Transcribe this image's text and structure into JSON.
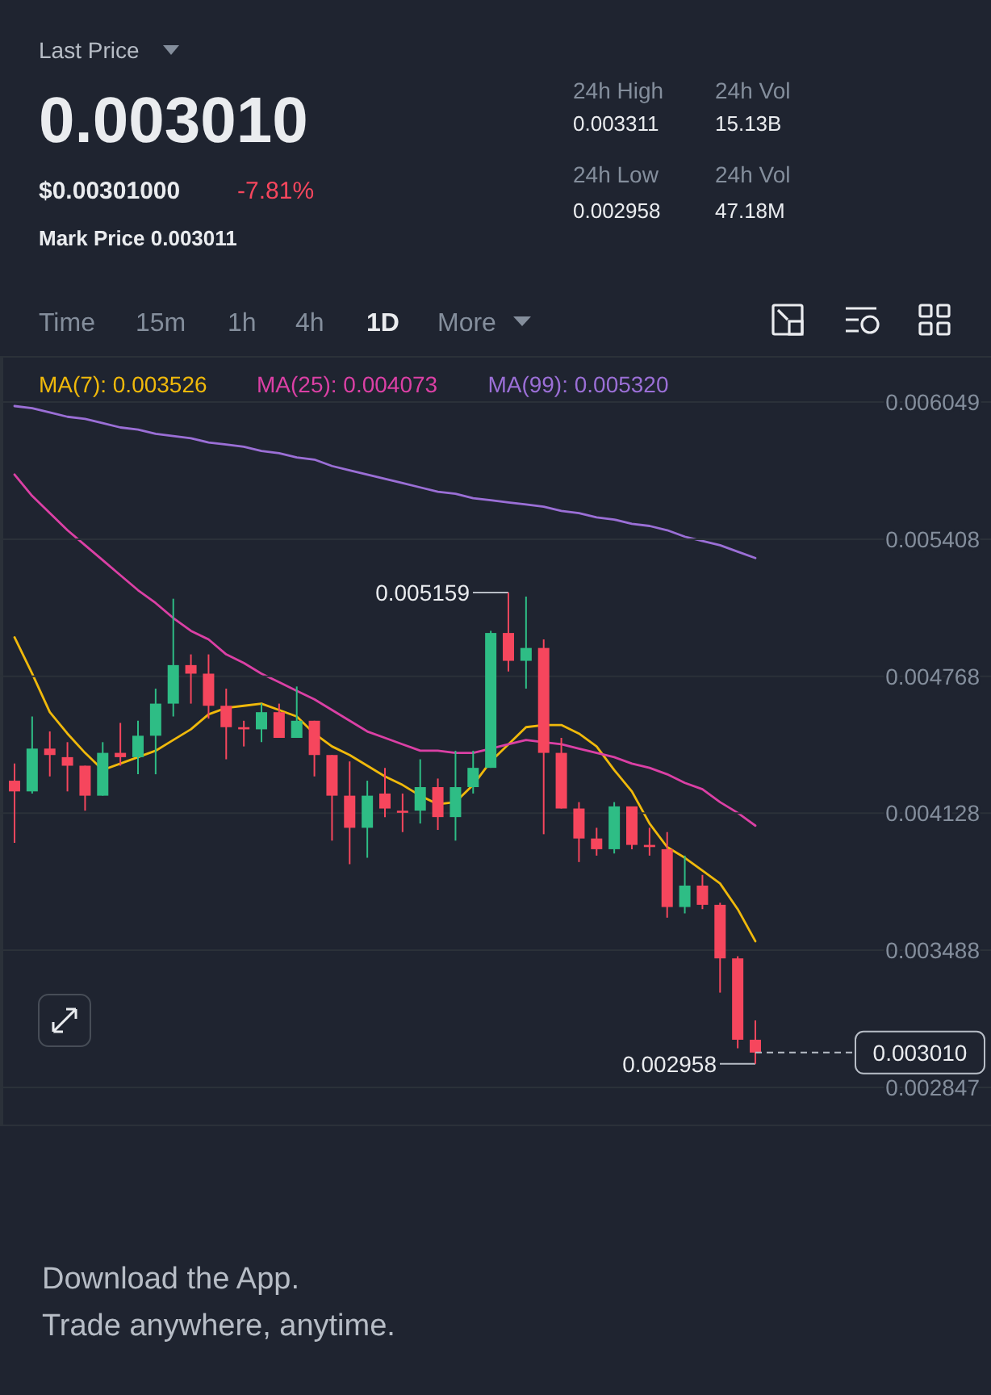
{
  "chart_data": [
    {
      "type": "candlestick",
      "title": "Last Price",
      "annotations": [
        "0.003010",
        "$0.00301000",
        "-7.81%",
        "Mark Price 0.003011",
        "24h High",
        "0.003311",
        "24h Vol",
        "15.13B",
        "24h Low",
        "0.002958",
        "24h Vol",
        "47.18M",
        "Time",
        "15m",
        "1h",
        "4h",
        "1D",
        "More",
        "Download the App.",
        "Trade anywhere, anytime.",
        "0.005159",
        "0.002958"
      ],
      "categories": [
        null,
        null,
        null,
        null,
        null,
        null,
        null,
        null,
        null,
        null,
        null,
        null,
        null,
        null,
        null,
        null,
        null,
        null,
        null,
        null,
        null,
        null,
        null,
        null,
        null,
        null,
        null,
        null,
        null,
        null,
        null,
        null,
        null,
        null,
        null,
        null,
        null,
        null,
        null,
        null,
        null,
        null,
        null
      ],
      "ohlc": [
        [
          0.00428,
          0.00436,
          0.00399,
          0.00423
        ],
        [
          0.00423,
          0.00458,
          0.00422,
          0.00443
        ],
        [
          0.00443,
          0.00451,
          0.0043,
          0.0044
        ],
        [
          0.00439,
          0.00446,
          0.00423,
          0.00435
        ],
        [
          0.00435,
          0.00435,
          0.00414,
          0.00421
        ],
        [
          0.00421,
          0.00446,
          0.00421,
          0.00441
        ],
        [
          0.00441,
          0.00455,
          0.00435,
          0.00439
        ],
        [
          0.00439,
          0.00456,
          0.00431,
          0.00449
        ],
        [
          0.00449,
          0.00471,
          0.00431,
          0.00464
        ],
        [
          0.00464,
          0.00513,
          0.00458,
          0.00482
        ],
        [
          0.00482,
          0.00487,
          0.00464,
          0.00478
        ],
        [
          0.00478,
          0.00487,
          0.00457,
          0.00463
        ],
        [
          0.00463,
          0.00471,
          0.00438,
          0.00453
        ],
        [
          0.00453,
          0.00456,
          0.00444,
          0.00452
        ],
        [
          0.00452,
          0.00464,
          0.00446,
          0.0046
        ],
        [
          0.0046,
          0.00464,
          0.00448,
          0.00448
        ],
        [
          0.00448,
          0.00472,
          0.00448,
          0.00456
        ],
        [
          0.00456,
          0.00456,
          0.0043,
          0.0044
        ],
        [
          0.0044,
          0.0044,
          0.004,
          0.00421
        ],
        [
          0.00421,
          0.00437,
          0.00389,
          0.00406
        ],
        [
          0.00406,
          0.00428,
          0.00392,
          0.00421
        ],
        [
          0.00422,
          0.00434,
          0.00411,
          0.00415
        ],
        [
          0.00414,
          0.00422,
          0.00404,
          0.00413
        ],
        [
          0.00414,
          0.00438,
          0.00408,
          0.00425
        ],
        [
          0.00425,
          0.00429,
          0.00405,
          0.00411
        ],
        [
          0.00411,
          0.00442,
          0.004,
          0.00425
        ],
        [
          0.00425,
          0.00442,
          0.00422,
          0.00434
        ],
        [
          0.00434,
          0.00498,
          0.00434,
          0.00497
        ],
        [
          0.00497,
          0.005159,
          0.00479,
          0.00484
        ],
        [
          0.00484,
          0.00514,
          0.00471,
          0.0049
        ],
        [
          0.0049,
          0.00494,
          0.00403,
          0.00441
        ],
        [
          0.00441,
          0.00448,
          0.00415,
          0.00415
        ],
        [
          0.00415,
          0.00418,
          0.0039,
          0.00401
        ],
        [
          0.00401,
          0.00406,
          0.00393,
          0.00396
        ],
        [
          0.00396,
          0.00418,
          0.00394,
          0.00416
        ],
        [
          0.00416,
          0.00416,
          0.00396,
          0.00398
        ],
        [
          0.00398,
          0.00406,
          0.00393,
          0.00397
        ],
        [
          0.00396,
          0.00404,
          0.00364,
          0.00369
        ],
        [
          0.00369,
          0.00393,
          0.00366,
          0.00379
        ],
        [
          0.00379,
          0.00384,
          0.00368,
          0.0037
        ],
        [
          0.0037,
          0.00371,
          0.00329,
          0.00345
        ],
        [
          0.00345,
          0.00346,
          0.00303,
          0.00307
        ],
        [
          0.00307,
          0.00316,
          0.002958,
          0.00301
        ]
      ],
      "colors": [
        "#f6465d",
        "#2ebd85",
        "#f6465d",
        "#f6465d",
        "#f6465d",
        "#2ebd85",
        "#f6465d",
        "#2ebd85",
        "#2ebd85",
        "#2ebd85",
        "#f6465d",
        "#f6465d",
        "#f6465d",
        "#f6465d",
        "#2ebd85",
        "#f6465d",
        "#2ebd85",
        "#f6465d",
        "#f6465d",
        "#f6465d",
        "#2ebd85",
        "#f6465d",
        "#f6465d",
        "#2ebd85",
        "#f6465d",
        "#2ebd85",
        "#2ebd85",
        "#2ebd85",
        "#f6465d",
        "#2ebd85",
        "#f6465d",
        "#f6465d",
        "#f6465d",
        "#f6465d",
        "#2ebd85",
        "#f6465d",
        "#f6465d",
        "#f6465d",
        "#2ebd85",
        "#f6465d",
        "#f6465d",
        "#f6465d",
        "#f6465d"
      ],
      "ylim": [
        0.00267,
        0.00626
      ],
      "yticks": [
        0.006049,
        0.005408,
        0.004768,
        0.004128,
        0.003488,
        0.002847
      ],
      "grid": "y",
      "ref_lines": [
        {
          "axis": "y",
          "value": 0.00301,
          "label": "0.003010",
          "color": "#b7bdc6",
          "line_style": "dashed"
        }
      ]
    },
    {
      "type": "line",
      "categories": [
        null,
        null,
        null,
        null,
        null,
        null,
        null,
        null,
        null,
        null,
        null,
        null,
        null,
        null,
        null,
        null,
        null,
        null,
        null,
        null,
        null,
        null,
        null,
        null,
        null,
        null,
        null,
        null,
        null,
        null,
        null,
        null,
        null,
        null,
        null,
        null,
        null,
        null,
        null,
        null,
        null,
        null,
        null
      ],
      "series": [
        {
          "name": "MA(7): 0.003526",
          "color": "#f0b90b",
          "values": [
            0.00495,
            0.00478,
            0.0046,
            0.0045,
            0.00441,
            0.00433,
            0.00436,
            0.00439,
            0.00442,
            0.00447,
            0.00452,
            0.00459,
            0.00462,
            0.00463,
            0.00464,
            0.00461,
            0.00458,
            0.0045,
            0.00444,
            0.0044,
            0.00435,
            0.0043,
            0.00426,
            0.00421,
            0.00417,
            0.00418,
            0.00426,
            0.00437,
            0.00445,
            0.00453,
            0.00454,
            0.00454,
            0.0045,
            0.00444,
            0.00433,
            0.00423,
            0.00408,
            0.00397,
            0.00392,
            0.00386,
            0.0038,
            0.00368,
            0.00353
          ]
        },
        {
          "name": "MA(25): 0.004073",
          "color": "#db40a5",
          "values": [
            0.00571,
            0.00561,
            0.00553,
            0.00545,
            0.00538,
            0.00531,
            0.00524,
            0.00517,
            0.00511,
            0.00504,
            0.00498,
            0.00494,
            0.00487,
            0.00483,
            0.00478,
            0.00474,
            0.0047,
            0.00466,
            0.00461,
            0.00456,
            0.00451,
            0.00448,
            0.00445,
            0.00442,
            0.00442,
            0.00441,
            0.00441,
            0.00443,
            0.00445,
            0.00447,
            0.00446,
            0.00445,
            0.00443,
            0.00441,
            0.00439,
            0.00436,
            0.00434,
            0.00431,
            0.00427,
            0.00424,
            0.00418,
            0.00413,
            0.00407
          ]
        },
        {
          "name": "MA(99): 0.005320",
          "color": "#9b6fd6",
          "values": [
            0.00603,
            0.00602,
            0.006,
            0.00598,
            0.00597,
            0.00595,
            0.00593,
            0.00592,
            0.0059,
            0.00589,
            0.00588,
            0.00586,
            0.00585,
            0.00584,
            0.00582,
            0.00581,
            0.00579,
            0.00578,
            0.00575,
            0.00573,
            0.00571,
            0.00569,
            0.00567,
            0.00565,
            0.00563,
            0.00562,
            0.0056,
            0.00559,
            0.00558,
            0.00557,
            0.00556,
            0.00554,
            0.00553,
            0.00551,
            0.0055,
            0.00548,
            0.00547,
            0.00545,
            0.00542,
            0.0054,
            0.00538,
            0.00535,
            0.00532
          ]
        }
      ],
      "ylim": [
        0.00267,
        0.00626
      ],
      "yticks": [
        0.006049,
        0.005408,
        0.004768,
        0.004128,
        0.003488,
        0.002847
      ],
      "tick_labels": false
    }
  ]
}
